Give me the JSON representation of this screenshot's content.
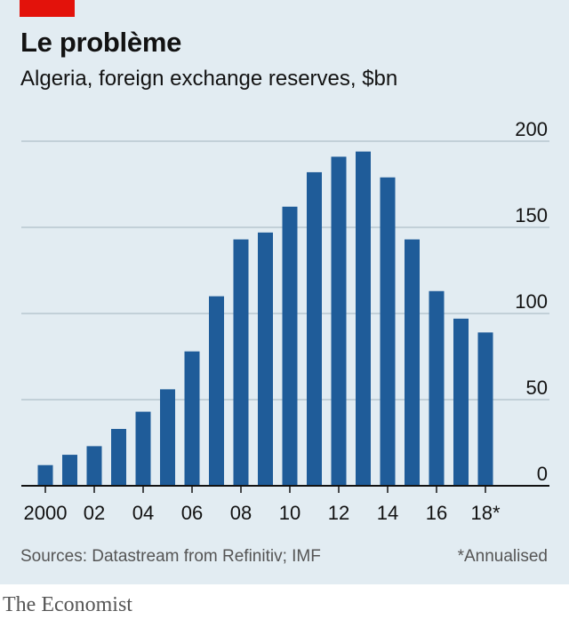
{
  "title": "Le problème",
  "subtitle": "Algeria, foreign exchange reserves, $bn",
  "sources": "Sources: Datastream from Refinitiv; IMF",
  "footnote": "*Annualised",
  "brand": "The Economist",
  "colors": {
    "background": "#e2ecf2",
    "bar": "#1f5c99",
    "accent": "#e3120b",
    "grid": "#b7c6d0",
    "axis": "#121212"
  },
  "chart_data": {
    "type": "bar",
    "categories": [
      "2000",
      "2001",
      "2002",
      "2003",
      "2004",
      "2005",
      "2006",
      "2007",
      "2008",
      "2009",
      "2010",
      "2011",
      "2012",
      "2013",
      "2014",
      "2015",
      "2016",
      "2017",
      "2018"
    ],
    "values": [
      12,
      18,
      23,
      33,
      43,
      56,
      78,
      110,
      143,
      147,
      162,
      182,
      191,
      194,
      179,
      143,
      113,
      97,
      89
    ],
    "x_tick_labels": [
      "2000",
      "02",
      "04",
      "06",
      "08",
      "10",
      "12",
      "14",
      "16",
      "18*"
    ],
    "y_ticks": [
      0,
      50,
      100,
      150,
      200
    ],
    "ylim": [
      0,
      200
    ],
    "ylabel": "$bn",
    "xlabel": "",
    "grid": true,
    "y_axis_side": "right"
  }
}
